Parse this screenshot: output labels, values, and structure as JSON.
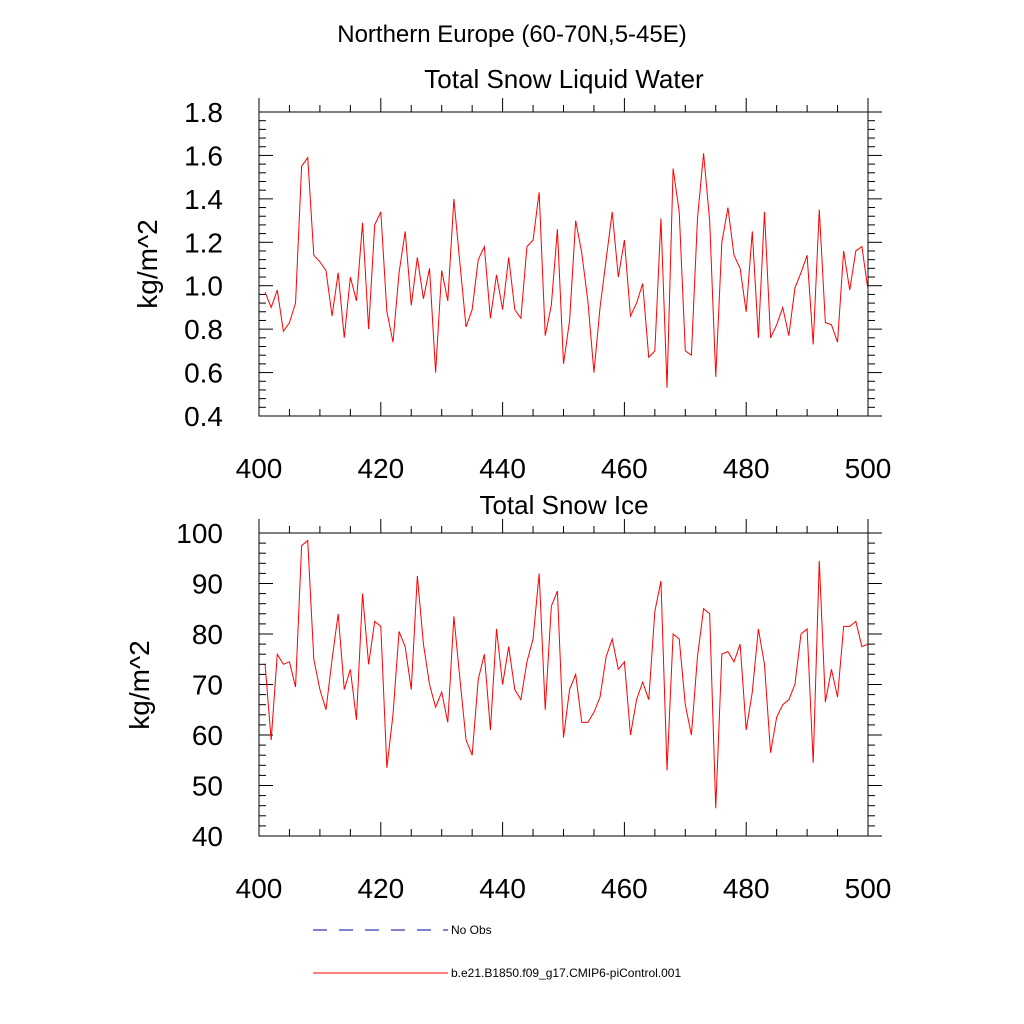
{
  "figure": {
    "suptitle": "Northern Europe (60-70N,5-45E)"
  },
  "legend": {
    "entries": [
      {
        "label": "No Obs",
        "color": "#0000aa",
        "style": "dashed"
      },
      {
        "label": "b.e21.B1850.f09_g17.CMIP6-piControl.001",
        "color": "#ff0000",
        "style": "solid"
      }
    ],
    "placement": "bottom"
  },
  "chart_data": [
    {
      "type": "line",
      "title": "Total Snow Liquid Water",
      "xlabel": "",
      "ylabel": "kg/m^2",
      "xlim": [
        400,
        500
      ],
      "ylim": [
        0.4,
        1.8
      ],
      "xticks": [
        400,
        420,
        440,
        460,
        480,
        500
      ],
      "yticks": [
        0.4,
        0.6,
        0.8,
        1.0,
        1.2,
        1.4,
        1.6,
        1.8
      ],
      "ytick_labels": [
        "0.4",
        "0.6",
        "0.8",
        "1.0",
        "1.2",
        "1.4",
        "1.6",
        "1.8"
      ],
      "grid": false,
      "series": [
        {
          "name": "b.e21.B1850.f09_g17.CMIP6-piControl.001",
          "color": "#ff0000",
          "x_start": 401,
          "x_step": 1,
          "values": [
            0.97,
            0.9,
            0.98,
            0.79,
            0.83,
            0.92,
            1.55,
            1.59,
            1.14,
            1.11,
            1.07,
            0.86,
            1.06,
            0.76,
            1.04,
            0.93,
            1.29,
            0.8,
            1.28,
            1.34,
            0.88,
            0.74,
            1.06,
            1.25,
            0.91,
            1.13,
            0.94,
            1.08,
            0.6,
            1.07,
            0.93,
            1.4,
            1.1,
            0.81,
            0.89,
            1.12,
            1.18,
            0.85,
            1.05,
            0.89,
            1.13,
            0.89,
            0.85,
            1.18,
            1.21,
            1.43,
            0.77,
            0.91,
            1.26,
            0.64,
            0.84,
            1.3,
            1.15,
            0.93,
            0.6,
            0.9,
            1.12,
            1.34,
            1.04,
            1.21,
            0.86,
            0.92,
            1.01,
            0.67,
            0.7,
            1.31,
            0.53,
            1.54,
            1.34,
            0.7,
            0.68,
            1.31,
            1.61,
            1.3,
            0.58,
            1.2,
            1.36,
            1.14,
            1.08,
            0.88,
            1.25,
            0.76,
            1.34,
            0.76,
            0.82,
            0.9,
            0.77,
            0.99,
            1.06,
            1.14,
            0.73,
            1.35,
            0.83,
            0.82,
            0.74,
            1.16,
            0.98,
            1.16,
            1.18,
            0.98
          ]
        }
      ]
    },
    {
      "type": "line",
      "title": "Total Snow Ice",
      "xlabel": "",
      "ylabel": "kg/m^2",
      "xlim": [
        400,
        500
      ],
      "ylim": [
        40,
        100
      ],
      "xticks": [
        400,
        420,
        440,
        460,
        480,
        500
      ],
      "yticks": [
        40,
        50,
        60,
        70,
        80,
        90,
        100
      ],
      "ytick_labels": [
        "40",
        "50",
        "60",
        "70",
        "80",
        "90",
        "100"
      ],
      "grid": false,
      "series": [
        {
          "name": "b.e21.B1850.f09_g17.CMIP6-piControl.001",
          "color": "#ff0000",
          "x_start": 401,
          "x_step": 1,
          "values": [
            74,
            59,
            76,
            74,
            74.5,
            69.5,
            97.5,
            98.5,
            75,
            69,
            65,
            75,
            84,
            69,
            73,
            63,
            88,
            74,
            82.5,
            81.5,
            53.5,
            64,
            80.5,
            77.5,
            69,
            91.5,
            78,
            70,
            65.5,
            68.5,
            62.5,
            83.5,
            71,
            59,
            56,
            71,
            76,
            61,
            81,
            70,
            77.5,
            69,
            67,
            74.5,
            79,
            92,
            65,
            85.5,
            88.5,
            59.5,
            69,
            72,
            62.5,
            62.5,
            64.5,
            67.5,
            75.5,
            79,
            73,
            74.5,
            60,
            67,
            70.5,
            67,
            84.5,
            90.5,
            53,
            80,
            79,
            66,
            60,
            75.5,
            85,
            84,
            45.5,
            76,
            76.5,
            74.5,
            78,
            61,
            68.5,
            81,
            74,
            56.5,
            63.5,
            66,
            67,
            70,
            80,
            81,
            54.5,
            94.5,
            66.5,
            73,
            67.5,
            81.5,
            81.5,
            82.5,
            77.5,
            78
          ]
        }
      ]
    }
  ]
}
